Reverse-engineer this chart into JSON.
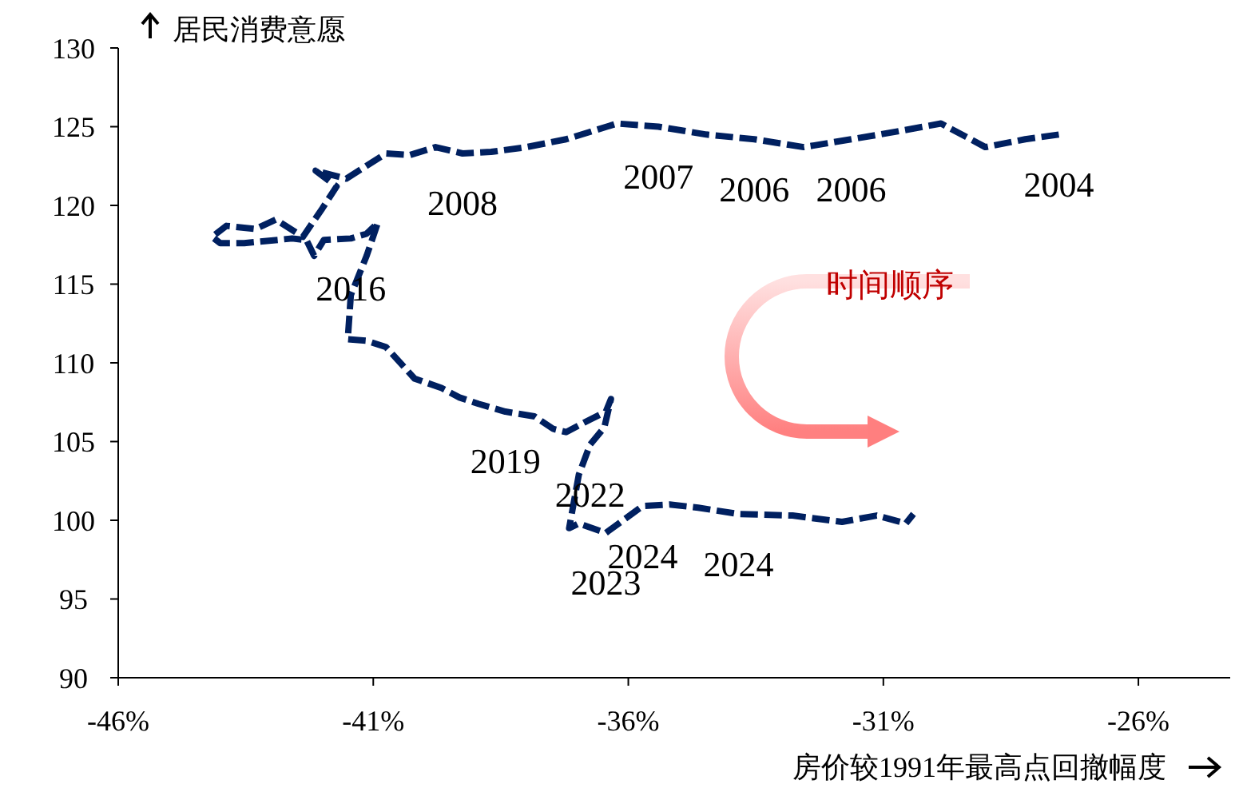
{
  "chart_data": {
    "type": "line",
    "xlabel": "房价较1991年最高点回撤幅度",
    "ylabel": "居民消费意愿",
    "xlim": [
      -46,
      -24.2
    ],
    "ylim": [
      90,
      130
    ],
    "xticks": [
      {
        "value": -46,
        "label": "-46%"
      },
      {
        "value": -41,
        "label": "-41%"
      },
      {
        "value": -36,
        "label": "-36%"
      },
      {
        "value": -31,
        "label": "-31%"
      },
      {
        "value": -26,
        "label": "-26%"
      }
    ],
    "yticks": [
      90,
      95,
      100,
      105,
      110,
      115,
      120,
      125,
      130
    ],
    "grid": false,
    "line_style": "dashed",
    "marker": "none",
    "series": [
      {
        "color": "#002060",
        "x": [
          -27.56,
          -28.22,
          -29.0,
          -29.87,
          -30.72,
          -31.63,
          -32.56,
          -33.53,
          -34.47,
          -35.41,
          -36.22,
          -37.22,
          -38.0,
          -38.69,
          -39.25,
          -39.78,
          -40.28,
          -40.75,
          -41.53,
          -42.13,
          -41.72,
          -42.0,
          -42.38,
          -42.91,
          -43.31,
          -43.88,
          -44.16,
          -44.0,
          -43.53,
          -42.59,
          -42.31,
          -42.16,
          -41.97,
          -41.44,
          -41.13,
          -40.91,
          -41.13,
          -41.44,
          -41.5,
          -41.13,
          -40.75,
          -40.19,
          -39.66,
          -39.31,
          -38.94,
          -38.41,
          -37.84,
          -37.47,
          -37.22,
          -36.75,
          -36.44,
          -36.34,
          -36.47,
          -36.75,
          -36.97,
          -37.16,
          -36.97,
          -36.44,
          -35.72,
          -35.19,
          -34.63,
          -33.84,
          -32.78,
          -31.81,
          -31.13,
          -30.56,
          -30.41
        ],
        "values": [
          124.5,
          124.2,
          123.7,
          125.2,
          124.7,
          124.2,
          123.7,
          124.2,
          124.5,
          125.0,
          125.2,
          124.2,
          123.7,
          123.4,
          123.3,
          123.7,
          123.2,
          123.3,
          121.7,
          122.2,
          121.2,
          119.8,
          118.0,
          119.1,
          118.5,
          118.7,
          118.0,
          117.6,
          117.6,
          117.9,
          117.8,
          116.8,
          117.8,
          117.9,
          118.2,
          118.9,
          116.8,
          114.3,
          111.5,
          111.4,
          111.0,
          109.0,
          108.4,
          107.8,
          107.4,
          106.9,
          106.6,
          105.8,
          105.6,
          106.4,
          106.9,
          107.7,
          105.9,
          104.8,
          102.9,
          99.5,
          99.8,
          99.2,
          100.9,
          101.0,
          100.8,
          100.4,
          100.3,
          99.9,
          100.3,
          99.8,
          100.4
        ]
      }
    ],
    "annotations": [
      {
        "text": "2008",
        "x": -39.25,
        "y": 123.3
      },
      {
        "text": "2007",
        "x": -35.41,
        "y": 125.0
      },
      {
        "text": "2006",
        "x": -33.53,
        "y": 124.2
      },
      {
        "text": "2006",
        "x": -31.63,
        "y": 124.2
      },
      {
        "text": "2004",
        "x": -27.56,
        "y": 124.5
      },
      {
        "text": "2016",
        "x": -41.44,
        "y": 117.9
      },
      {
        "text": "2019",
        "x": -38.41,
        "y": 106.9
      },
      {
        "text": "2022",
        "x": -36.75,
        "y": 104.8
      },
      {
        "text": "2024",
        "x": -35.72,
        "y": 100.9
      },
      {
        "text": "2024",
        "x": -33.84,
        "y": 100.4
      },
      {
        "text": "2023",
        "x": -36.44,
        "y": 99.2
      },
      "时间顺序"
    ]
  }
}
